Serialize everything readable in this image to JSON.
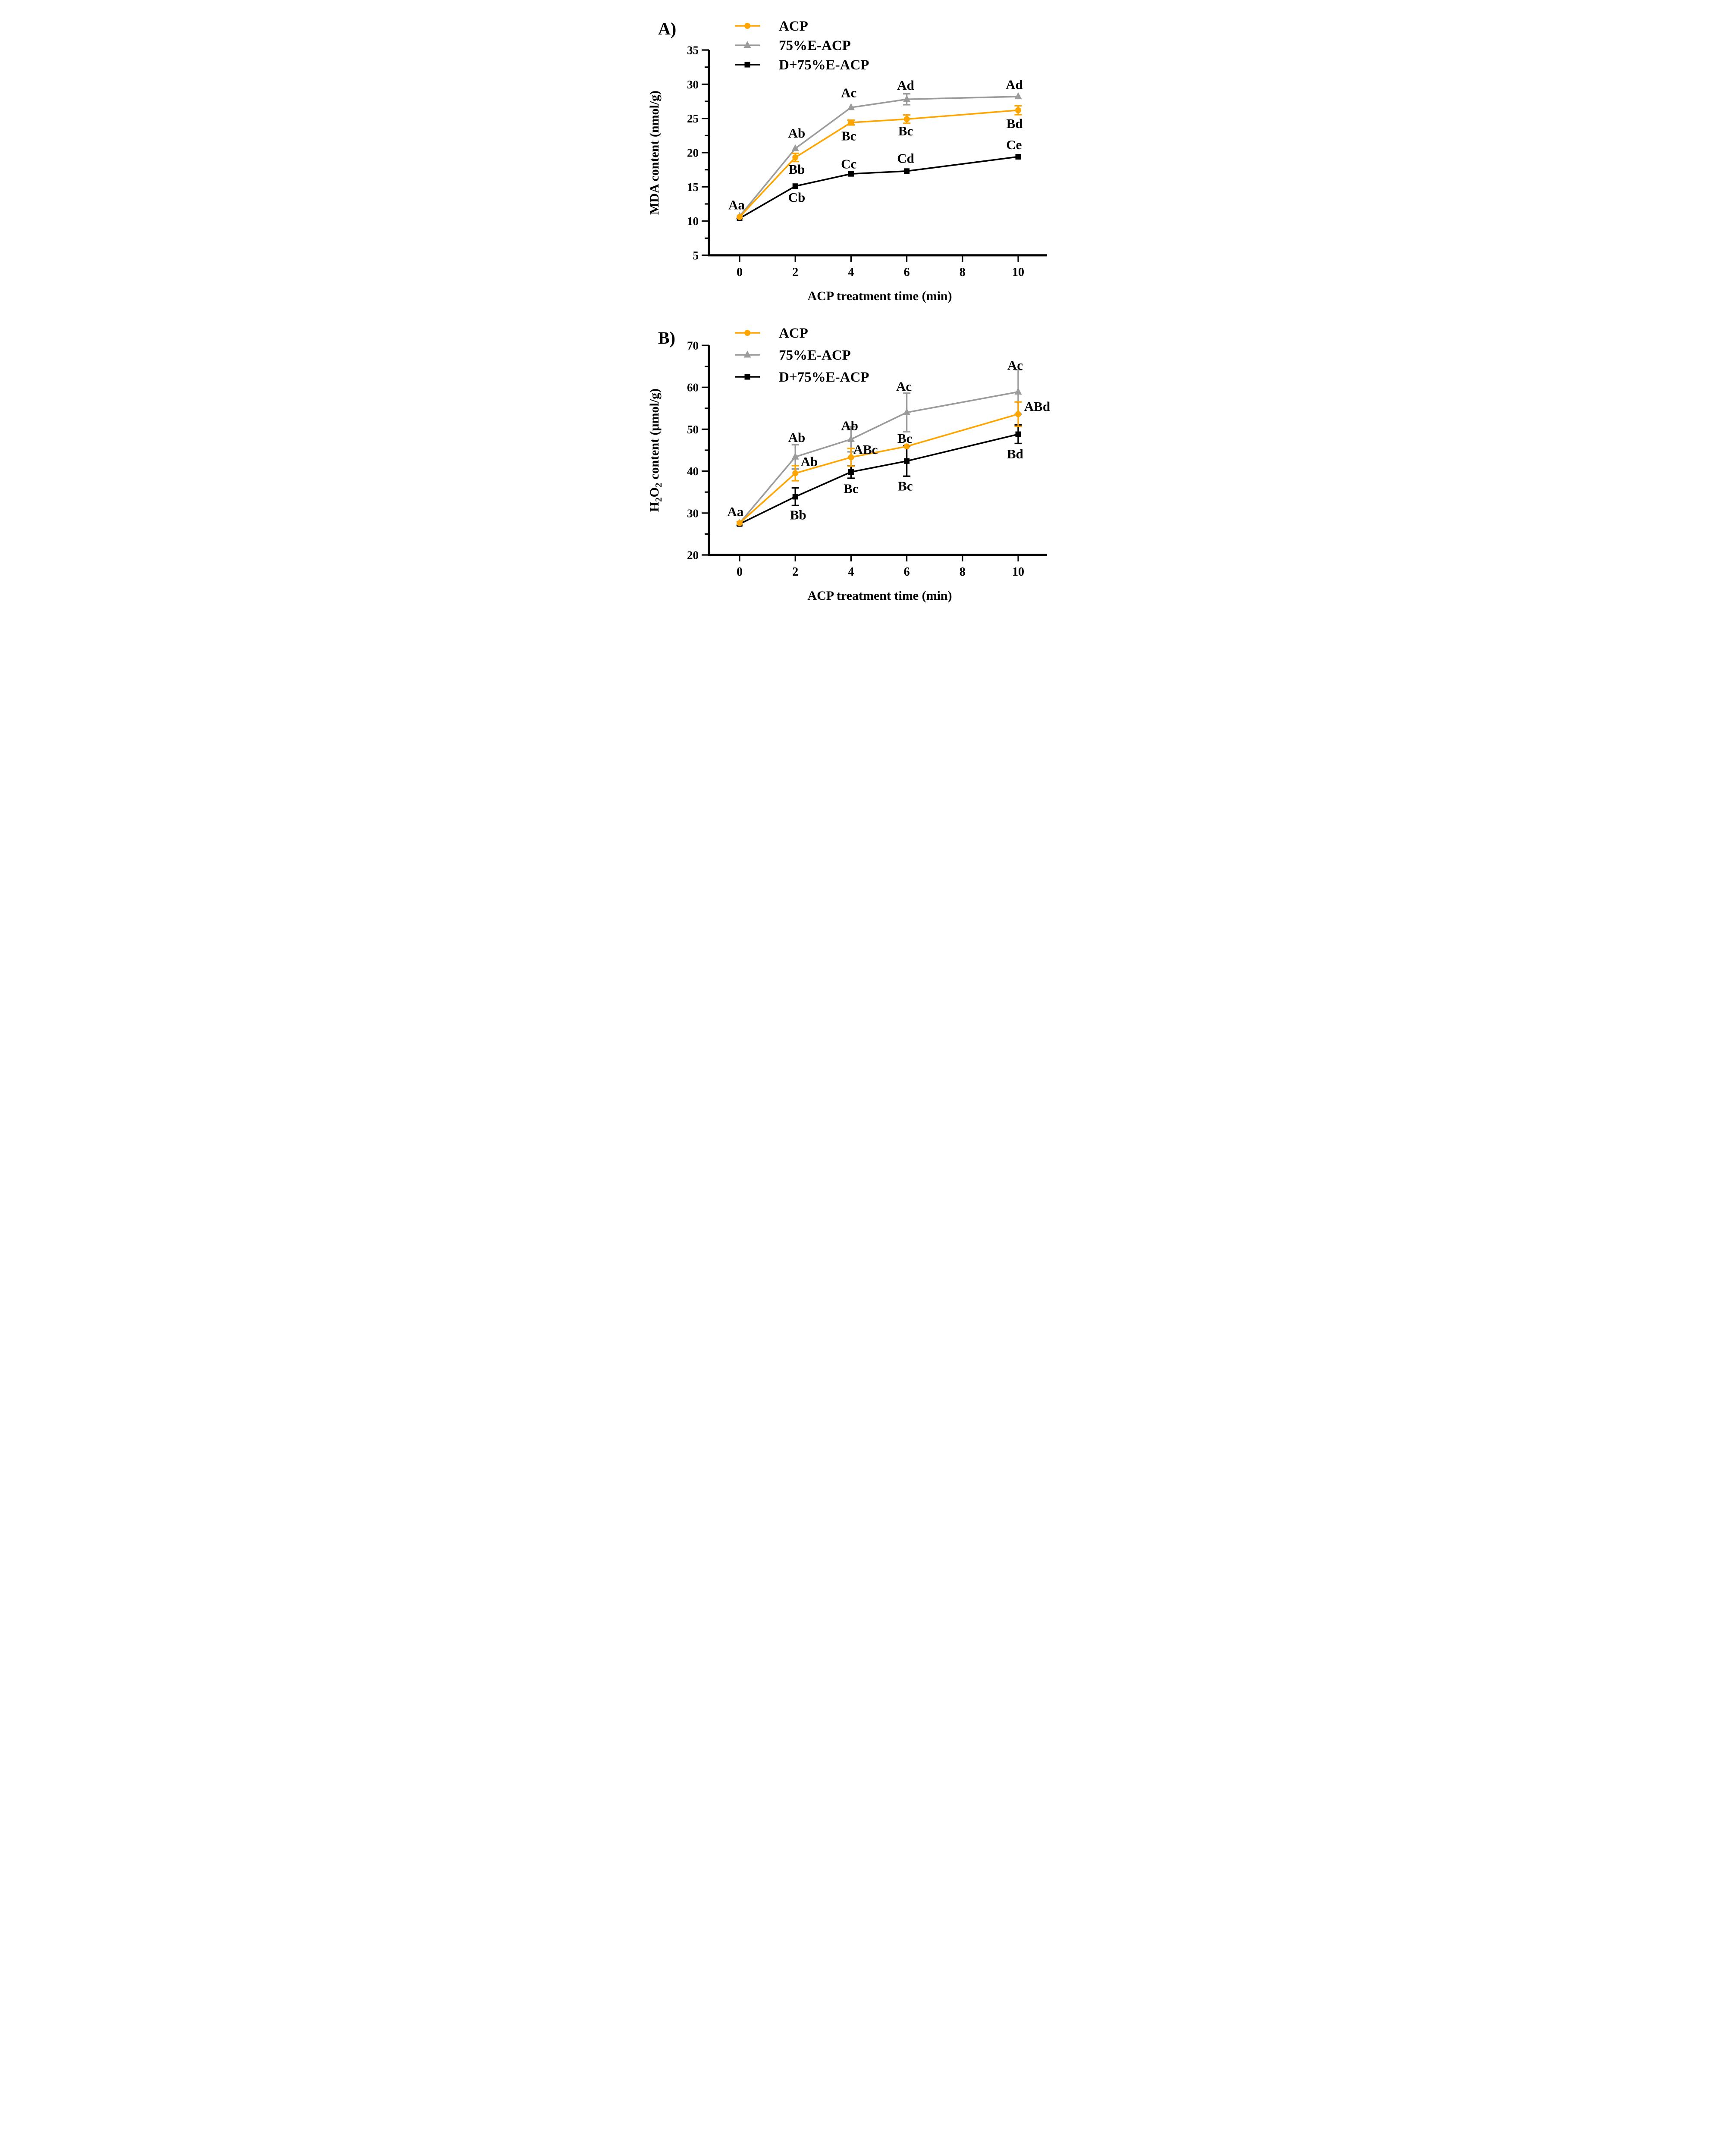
{
  "figure": {
    "panel_count": 2,
    "series_colors": {
      "acp": "#FFA500",
      "e75": "#9B9B9B",
      "d75": "#000000"
    },
    "legend": [
      "ACP",
      "75%E-ACP",
      "D+75%E-ACP"
    ]
  },
  "chart_data": [
    {
      "type": "line",
      "panel_label": "A)",
      "title": "",
      "xlabel": "ACP treatment time (min)",
      "ylabel_segments": [
        {
          "t": "MDA content (nmol/g)"
        }
      ],
      "x": [
        0,
        2,
        4,
        6,
        10
      ],
      "xticks": [
        0,
        2,
        4,
        6,
        8,
        10
      ],
      "ylim": [
        5,
        35
      ],
      "yticks": [
        5,
        10,
        15,
        20,
        25,
        30,
        35
      ],
      "y_minor_step": 2.5,
      "grid": false,
      "legend_position": "upper-left-inside",
      "series": [
        {
          "id": "acp",
          "name": "ACP",
          "color": "#FFA500",
          "marker": "circle",
          "z": 3,
          "values": [
            10.6,
            19.3,
            24.4,
            24.9,
            26.2
          ],
          "errors": [
            0,
            0.6,
            0.35,
            0.6,
            0.65
          ]
        },
        {
          "id": "e75",
          "name": "75%E-ACP",
          "color": "#9B9B9B",
          "marker": "triangle",
          "z": 1,
          "values": [
            10.7,
            20.6,
            26.6,
            27.8,
            28.2
          ],
          "errors": [
            0,
            0,
            0,
            0.8,
            0
          ]
        },
        {
          "id": "d75",
          "name": "D+75%E-ACP",
          "color": "#000000",
          "marker": "square",
          "z": 2,
          "values": [
            10.4,
            15.1,
            16.9,
            17.3,
            19.4
          ],
          "errors": [
            0,
            0,
            0,
            0,
            0
          ]
        }
      ],
      "annotations": [
        {
          "t": "Aa",
          "x": -0.11,
          "y": 12.4
        },
        {
          "t": "Ab",
          "x": 2.05,
          "y": 22.9
        },
        {
          "t": "Bb",
          "x": 2.05,
          "y": 17.6
        },
        {
          "t": "Cb",
          "x": 2.05,
          "y": 13.5
        },
        {
          "t": "Ac",
          "x": 3.92,
          "y": 28.8
        },
        {
          "t": "Bc",
          "x": 3.92,
          "y": 22.5
        },
        {
          "t": "Cc",
          "x": 3.92,
          "y": 18.4
        },
        {
          "t": "Ad",
          "x": 5.96,
          "y": 29.9
        },
        {
          "t": "Bc",
          "x": 5.96,
          "y": 23.2
        },
        {
          "t": "Cd",
          "x": 5.96,
          "y": 19.2
        },
        {
          "t": "Ad",
          "x": 9.86,
          "y": 30.0
        },
        {
          "t": "Bd",
          "x": 9.87,
          "y": 24.3
        },
        {
          "t": "Ce",
          "x": 9.85,
          "y": 21.2
        }
      ]
    },
    {
      "type": "line",
      "panel_label": "B)",
      "title": "",
      "xlabel": "ACP treatment time (min)",
      "ylabel_segments": [
        {
          "t": "H"
        },
        {
          "t": "2",
          "sub": true
        },
        {
          "t": "O"
        },
        {
          "t": "2",
          "sub": true
        },
        {
          "t": " content (μmol/g)"
        }
      ],
      "x": [
        0,
        2,
        4,
        6,
        10
      ],
      "xticks": [
        0,
        2,
        4,
        6,
        8,
        10
      ],
      "ylim": [
        20,
        70
      ],
      "yticks": [
        20,
        30,
        40,
        50,
        60,
        70
      ],
      "y_minor_step": 5,
      "grid": false,
      "legend_position": "upper-left-inside",
      "series": [
        {
          "id": "acp",
          "name": "ACP",
          "color": "#FFA500",
          "marker": "circle",
          "z": 3,
          "values": [
            27.6,
            39.5,
            43.3,
            45.9,
            53.6
          ],
          "errors": [
            0,
            1.8,
            2.1,
            0,
            2.9
          ]
        },
        {
          "id": "e75",
          "name": "75%E-ACP",
          "color": "#9B9B9B",
          "marker": "triangle",
          "z": 1,
          "values": [
            27.6,
            43.4,
            47.6,
            54.0,
            58.9
          ],
          "errors": [
            0,
            2.9,
            3.0,
            4.6,
            5.3
          ]
        },
        {
          "id": "d75",
          "name": "D+75%E-ACP",
          "color": "#000000",
          "marker": "square",
          "z": 2,
          "values": [
            27.4,
            33.9,
            39.8,
            42.4,
            48.8
          ],
          "errors": [
            0,
            2.1,
            1.5,
            3.6,
            2.2
          ]
        }
      ],
      "annotations": [
        {
          "t": "Aa",
          "x": -0.15,
          "y": 30.4
        },
        {
          "t": "Ab",
          "x": 2.05,
          "y": 48.1
        },
        {
          "t": "Ab",
          "x": 2.5,
          "y": 42.3
        },
        {
          "t": "Bb",
          "x": 2.1,
          "y": 29.6
        },
        {
          "t": "Ab",
          "x": 3.95,
          "y": 50.9
        },
        {
          "t": "ABc",
          "x": 4.52,
          "y": 45.2
        },
        {
          "t": "Bc",
          "x": 4.0,
          "y": 35.9
        },
        {
          "t": "Ac",
          "x": 5.9,
          "y": 60.3
        },
        {
          "t": "Bc",
          "x": 5.93,
          "y": 47.9
        },
        {
          "t": "Bc",
          "x": 5.95,
          "y": 36.5
        },
        {
          "t": "Ac",
          "x": 9.89,
          "y": 65.3
        },
        {
          "t": "ABd",
          "x": 10.68,
          "y": 55.5
        },
        {
          "t": "Bd",
          "x": 9.89,
          "y": 44.2
        }
      ]
    }
  ]
}
